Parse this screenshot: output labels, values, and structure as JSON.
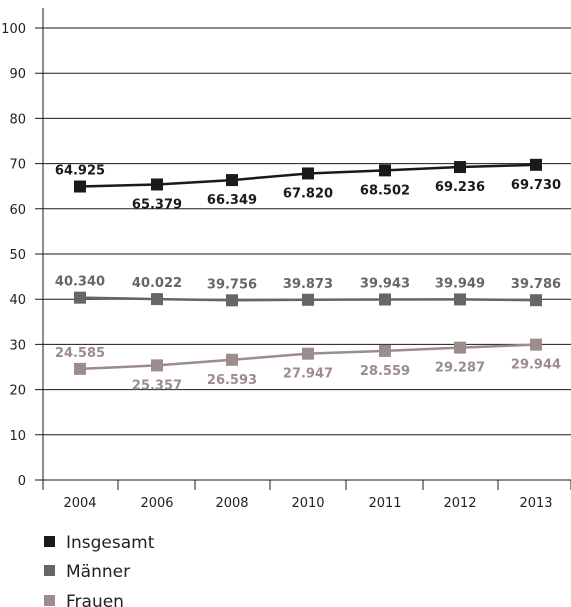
{
  "chart_data": {
    "type": "line",
    "categories": [
      "2004",
      "2006",
      "2008",
      "2010",
      "2011",
      "2012",
      "2013"
    ],
    "ylim": [
      0,
      100
    ],
    "yticks": [
      "0",
      "10",
      "20",
      "30",
      "40",
      "50",
      "60",
      "70",
      "80",
      "90",
      "100"
    ],
    "grid": true,
    "legend_placement": "bottom-left",
    "series": [
      {
        "name": "Insgesamt",
        "color": "#1a1a1a",
        "values": [
          64.925,
          65.379,
          66.349,
          67.82,
          68.502,
          69.236,
          69.73
        ],
        "labels": [
          "64.925",
          "65.379",
          "66.349",
          "67.820",
          "68.502",
          "69.236",
          "69.730"
        ],
        "label_side": [
          "above",
          "below",
          "below",
          "below",
          "below",
          "below",
          "below"
        ]
      },
      {
        "name": "Männer",
        "color": "#666666",
        "values": [
          40.34,
          40.022,
          39.756,
          39.873,
          39.943,
          39.949,
          39.786
        ],
        "labels": [
          "40.340",
          "40.022",
          "39.756",
          "39.873",
          "39.943",
          "39.949",
          "39.786"
        ],
        "label_side": [
          "above",
          "above",
          "above",
          "above",
          "above",
          "above",
          "above"
        ]
      },
      {
        "name": "Frauen",
        "color": "#9c8c8b",
        "values": [
          24.585,
          25.357,
          26.593,
          27.947,
          28.559,
          29.287,
          29.944
        ],
        "labels": [
          "24.585",
          "25.357",
          "26.593",
          "27.947",
          "28.559",
          "29.287",
          "29.944"
        ],
        "label_side": [
          "above",
          "below",
          "below",
          "below",
          "below",
          "below",
          "below"
        ]
      }
    ]
  }
}
